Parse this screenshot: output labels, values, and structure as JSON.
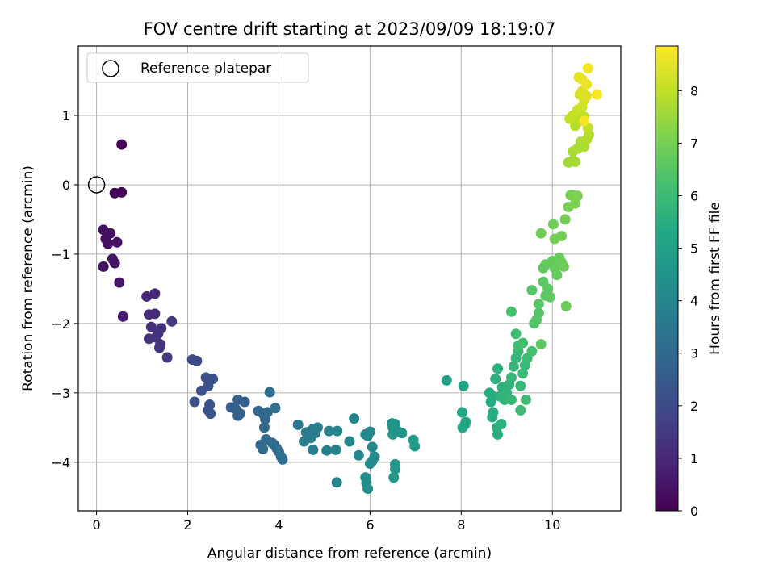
{
  "chart_data": {
    "type": "scatter",
    "title": "FOV centre drift starting at 2023/09/09 18:19:07",
    "xlabel": "Angular distance from reference (arcmin)",
    "ylabel": "Rotation from reference (arcmin)",
    "xlim": [
      -0.4,
      11.5
    ],
    "ylim": [
      -4.7,
      2.0
    ],
    "xticks": [
      "0",
      "2",
      "4",
      "6",
      "8",
      "10"
    ],
    "yticks": [
      "−4",
      "−3",
      "−2",
      "−1",
      "0",
      "1"
    ],
    "grid": true,
    "legend": {
      "placement": "top-left",
      "entries": [
        "Reference platepar"
      ]
    },
    "reference_point": {
      "x": 0,
      "y": 0
    },
    "colorbar": {
      "label": "Hours from first FF file",
      "range": [
        0,
        8.85
      ],
      "ticks": [
        "0",
        "1",
        "2",
        "3",
        "4",
        "5",
        "6",
        "7",
        "8"
      ],
      "colormap": "viridis"
    },
    "points": [
      {
        "x": 0.55,
        "y": 0.58,
        "c": 0.0
      },
      {
        "x": 0.4,
        "y": -0.12,
        "c": 0.05
      },
      {
        "x": 0.55,
        "y": -0.11,
        "c": 0.05
      },
      {
        "x": 0.15,
        "y": -0.65,
        "c": 0.3
      },
      {
        "x": 0.3,
        "y": -0.7,
        "c": 0.3
      },
      {
        "x": 0.2,
        "y": -0.78,
        "c": 0.35
      },
      {
        "x": 0.25,
        "y": -0.85,
        "c": 0.35
      },
      {
        "x": 0.45,
        "y": -0.83,
        "c": 0.4
      },
      {
        "x": 0.35,
        "y": -1.07,
        "c": 0.45
      },
      {
        "x": 0.15,
        "y": -1.18,
        "c": 0.45
      },
      {
        "x": 0.4,
        "y": -1.13,
        "c": 0.5
      },
      {
        "x": 0.5,
        "y": -1.41,
        "c": 0.55
      },
      {
        "x": 0.58,
        "y": -1.9,
        "c": 0.6
      },
      {
        "x": 1.1,
        "y": -1.61,
        "c": 1.0
      },
      {
        "x": 1.28,
        "y": -1.57,
        "c": 1.0
      },
      {
        "x": 1.15,
        "y": -1.87,
        "c": 1.1
      },
      {
        "x": 1.28,
        "y": -1.86,
        "c": 1.1
      },
      {
        "x": 1.2,
        "y": -2.05,
        "c": 1.2
      },
      {
        "x": 1.35,
        "y": -2.15,
        "c": 1.2
      },
      {
        "x": 1.42,
        "y": -2.07,
        "c": 1.25
      },
      {
        "x": 1.15,
        "y": -2.22,
        "c": 1.3
      },
      {
        "x": 1.3,
        "y": -2.2,
        "c": 1.3
      },
      {
        "x": 1.4,
        "y": -2.3,
        "c": 1.35
      },
      {
        "x": 1.38,
        "y": -2.35,
        "c": 1.35
      },
      {
        "x": 1.65,
        "y": -1.97,
        "c": 1.4
      },
      {
        "x": 1.55,
        "y": -2.49,
        "c": 1.5
      },
      {
        "x": 2.1,
        "y": -2.52,
        "c": 2.0
      },
      {
        "x": 2.2,
        "y": -2.54,
        "c": 2.0
      },
      {
        "x": 2.3,
        "y": -2.97,
        "c": 2.1
      },
      {
        "x": 2.4,
        "y": -2.78,
        "c": 2.15
      },
      {
        "x": 2.55,
        "y": -2.8,
        "c": 2.2
      },
      {
        "x": 2.45,
        "y": -2.9,
        "c": 2.2
      },
      {
        "x": 2.15,
        "y": -3.13,
        "c": 2.25
      },
      {
        "x": 2.48,
        "y": -3.17,
        "c": 2.3
      },
      {
        "x": 2.45,
        "y": -3.25,
        "c": 2.3
      },
      {
        "x": 2.5,
        "y": -3.3,
        "c": 2.35
      },
      {
        "x": 2.95,
        "y": -3.21,
        "c": 2.6
      },
      {
        "x": 3.1,
        "y": -3.1,
        "c": 2.65
      },
      {
        "x": 3.25,
        "y": -3.13,
        "c": 2.7
      },
      {
        "x": 3.05,
        "y": -3.23,
        "c": 2.7
      },
      {
        "x": 3.15,
        "y": -3.3,
        "c": 2.75
      },
      {
        "x": 3.1,
        "y": -3.33,
        "c": 2.75
      },
      {
        "x": 3.55,
        "y": -3.26,
        "c": 2.85
      },
      {
        "x": 3.65,
        "y": -3.3,
        "c": 2.9
      },
      {
        "x": 3.75,
        "y": -3.28,
        "c": 2.9
      },
      {
        "x": 3.7,
        "y": -3.38,
        "c": 2.95
      },
      {
        "x": 3.68,
        "y": -3.5,
        "c": 3.0
      },
      {
        "x": 3.6,
        "y": -3.75,
        "c": 3.05
      },
      {
        "x": 3.65,
        "y": -3.81,
        "c": 3.05
      },
      {
        "x": 3.72,
        "y": -3.67,
        "c": 3.05
      },
      {
        "x": 3.85,
        "y": -3.72,
        "c": 3.1
      },
      {
        "x": 3.9,
        "y": -3.75,
        "c": 3.1
      },
      {
        "x": 3.95,
        "y": -3.8,
        "c": 3.15
      },
      {
        "x": 4.0,
        "y": -3.85,
        "c": 3.15
      },
      {
        "x": 4.05,
        "y": -3.92,
        "c": 3.2
      },
      {
        "x": 4.08,
        "y": -3.96,
        "c": 3.2
      },
      {
        "x": 3.8,
        "y": -2.99,
        "c": 3.25
      },
      {
        "x": 3.92,
        "y": -3.22,
        "c": 3.25
      },
      {
        "x": 4.42,
        "y": -3.46,
        "c": 3.5
      },
      {
        "x": 4.6,
        "y": -3.57,
        "c": 3.55
      },
      {
        "x": 4.65,
        "y": -3.62,
        "c": 3.6
      },
      {
        "x": 4.7,
        "y": -3.55,
        "c": 3.6
      },
      {
        "x": 4.75,
        "y": -3.52,
        "c": 3.65
      },
      {
        "x": 4.8,
        "y": -3.58,
        "c": 3.65
      },
      {
        "x": 4.85,
        "y": -3.5,
        "c": 3.7
      },
      {
        "x": 4.7,
        "y": -3.65,
        "c": 3.7
      },
      {
        "x": 4.55,
        "y": -3.7,
        "c": 3.75
      },
      {
        "x": 4.75,
        "y": -3.82,
        "c": 3.75
      },
      {
        "x": 5.05,
        "y": -3.83,
        "c": 3.8
      },
      {
        "x": 5.1,
        "y": -3.55,
        "c": 3.85
      },
      {
        "x": 5.28,
        "y": -3.55,
        "c": 3.9
      },
      {
        "x": 5.25,
        "y": -3.82,
        "c": 3.9
      },
      {
        "x": 5.27,
        "y": -4.29,
        "c": 3.95
      },
      {
        "x": 5.55,
        "y": -3.7,
        "c": 4.0
      },
      {
        "x": 5.65,
        "y": -3.37,
        "c": 4.0
      },
      {
        "x": 5.75,
        "y": -3.9,
        "c": 4.05
      },
      {
        "x": 5.9,
        "y": -3.6,
        "c": 4.1
      },
      {
        "x": 6.0,
        "y": -3.56,
        "c": 4.1
      },
      {
        "x": 5.95,
        "y": -3.62,
        "c": 4.1
      },
      {
        "x": 6.05,
        "y": -3.78,
        "c": 4.15
      },
      {
        "x": 6.1,
        "y": -3.92,
        "c": 4.15
      },
      {
        "x": 6.05,
        "y": -3.98,
        "c": 4.2
      },
      {
        "x": 6.0,
        "y": -4.02,
        "c": 4.2
      },
      {
        "x": 5.9,
        "y": -4.22,
        "c": 4.25
      },
      {
        "x": 5.92,
        "y": -4.3,
        "c": 4.25
      },
      {
        "x": 5.95,
        "y": -4.38,
        "c": 4.3
      },
      {
        "x": 6.48,
        "y": -3.44,
        "c": 4.5
      },
      {
        "x": 6.55,
        "y": -3.45,
        "c": 4.55
      },
      {
        "x": 6.5,
        "y": -3.5,
        "c": 4.55
      },
      {
        "x": 6.6,
        "y": -3.55,
        "c": 4.6
      },
      {
        "x": 6.7,
        "y": -3.58,
        "c": 4.6
      },
      {
        "x": 6.5,
        "y": -3.6,
        "c": 4.65
      },
      {
        "x": 6.55,
        "y": -4.03,
        "c": 4.7
      },
      {
        "x": 6.55,
        "y": -4.1,
        "c": 4.7
      },
      {
        "x": 6.52,
        "y": -4.22,
        "c": 4.75
      },
      {
        "x": 6.95,
        "y": -3.68,
        "c": 4.8
      },
      {
        "x": 6.98,
        "y": -3.77,
        "c": 4.85
      },
      {
        "x": 7.68,
        "y": -2.82,
        "c": 5.0
      },
      {
        "x": 8.05,
        "y": -2.9,
        "c": 5.1
      },
      {
        "x": 8.02,
        "y": -3.28,
        "c": 5.15
      },
      {
        "x": 8.1,
        "y": -3.42,
        "c": 5.2
      },
      {
        "x": 8.08,
        "y": -3.46,
        "c": 5.2
      },
      {
        "x": 8.03,
        "y": -3.5,
        "c": 5.25
      },
      {
        "x": 8.62,
        "y": -3.0,
        "c": 5.4
      },
      {
        "x": 8.7,
        "y": -3.05,
        "c": 5.45
      },
      {
        "x": 8.65,
        "y": -3.13,
        "c": 5.45
      },
      {
        "x": 8.7,
        "y": -3.28,
        "c": 5.5
      },
      {
        "x": 8.68,
        "y": -3.35,
        "c": 5.5
      },
      {
        "x": 8.78,
        "y": -3.5,
        "c": 5.55
      },
      {
        "x": 8.8,
        "y": -3.6,
        "c": 5.55
      },
      {
        "x": 8.88,
        "y": -3.45,
        "c": 5.6
      },
      {
        "x": 8.75,
        "y": -2.8,
        "c": 5.6
      },
      {
        "x": 8.8,
        "y": -2.65,
        "c": 5.65
      },
      {
        "x": 8.9,
        "y": -2.92,
        "c": 5.65
      },
      {
        "x": 8.85,
        "y": -3.05,
        "c": 5.7
      },
      {
        "x": 8.95,
        "y": -3.1,
        "c": 5.7
      },
      {
        "x": 9.0,
        "y": -3.0,
        "c": 5.75
      },
      {
        "x": 9.05,
        "y": -2.88,
        "c": 5.75
      },
      {
        "x": 9.1,
        "y": -2.78,
        "c": 5.8
      },
      {
        "x": 9.15,
        "y": -2.62,
        "c": 5.8
      },
      {
        "x": 9.2,
        "y": -2.5,
        "c": 5.85
      },
      {
        "x": 9.25,
        "y": -2.4,
        "c": 5.85
      },
      {
        "x": 9.1,
        "y": -3.1,
        "c": 5.9
      },
      {
        "x": 9.3,
        "y": -2.9,
        "c": 5.9
      },
      {
        "x": 9.35,
        "y": -2.72,
        "c": 5.95
      },
      {
        "x": 9.4,
        "y": -2.6,
        "c": 5.95
      },
      {
        "x": 9.45,
        "y": -2.5,
        "c": 6.0
      },
      {
        "x": 9.3,
        "y": -3.25,
        "c": 6.0
      },
      {
        "x": 9.42,
        "y": -3.1,
        "c": 6.05
      },
      {
        "x": 9.2,
        "y": -2.15,
        "c": 6.1
      },
      {
        "x": 9.25,
        "y": -2.32,
        "c": 6.1
      },
      {
        "x": 9.35,
        "y": -2.28,
        "c": 6.15
      },
      {
        "x": 9.55,
        "y": -2.4,
        "c": 6.2
      },
      {
        "x": 9.1,
        "y": -1.83,
        "c": 6.25
      },
      {
        "x": 9.6,
        "y": -2.0,
        "c": 6.4
      },
      {
        "x": 9.65,
        "y": -1.95,
        "c": 6.45
      },
      {
        "x": 9.7,
        "y": -1.85,
        "c": 6.45
      },
      {
        "x": 9.55,
        "y": -1.52,
        "c": 6.5
      },
      {
        "x": 9.7,
        "y": -1.72,
        "c": 6.5
      },
      {
        "x": 9.8,
        "y": -1.4,
        "c": 6.55
      },
      {
        "x": 9.85,
        "y": -1.6,
        "c": 6.55
      },
      {
        "x": 9.75,
        "y": -2.3,
        "c": 6.6
      },
      {
        "x": 9.9,
        "y": -1.5,
        "c": 6.6
      },
      {
        "x": 9.95,
        "y": -1.62,
        "c": 6.65
      },
      {
        "x": 9.8,
        "y": -1.2,
        "c": 6.65
      },
      {
        "x": 9.85,
        "y": -1.15,
        "c": 6.7
      },
      {
        "x": 10.0,
        "y": -1.1,
        "c": 6.7
      },
      {
        "x": 10.05,
        "y": -1.2,
        "c": 6.75
      },
      {
        "x": 10.1,
        "y": -1.3,
        "c": 6.75
      },
      {
        "x": 10.15,
        "y": -1.05,
        "c": 6.8
      },
      {
        "x": 10.2,
        "y": -1.12,
        "c": 6.8
      },
      {
        "x": 10.25,
        "y": -1.18,
        "c": 6.85
      },
      {
        "x": 10.3,
        "y": -1.75,
        "c": 6.85
      },
      {
        "x": 9.75,
        "y": -0.7,
        "c": 6.9
      },
      {
        "x": 10.02,
        "y": -0.57,
        "c": 6.9
      },
      {
        "x": 10.05,
        "y": -0.78,
        "c": 6.95
      },
      {
        "x": 10.2,
        "y": -0.74,
        "c": 6.95
      },
      {
        "x": 10.28,
        "y": -0.5,
        "c": 7.0
      },
      {
        "x": 10.35,
        "y": -0.32,
        "c": 7.0
      },
      {
        "x": 10.4,
        "y": -0.15,
        "c": 7.05
      },
      {
        "x": 10.45,
        "y": -0.15,
        "c": 7.05
      },
      {
        "x": 10.5,
        "y": -0.27,
        "c": 7.1
      },
      {
        "x": 10.55,
        "y": -0.16,
        "c": 7.1
      },
      {
        "x": 10.35,
        "y": 0.32,
        "c": 7.6
      },
      {
        "x": 10.45,
        "y": 0.35,
        "c": 7.65
      },
      {
        "x": 10.5,
        "y": 0.33,
        "c": 7.65
      },
      {
        "x": 10.45,
        "y": 0.48,
        "c": 7.7
      },
      {
        "x": 10.55,
        "y": 0.52,
        "c": 7.7
      },
      {
        "x": 10.62,
        "y": 0.62,
        "c": 7.75
      },
      {
        "x": 10.7,
        "y": 0.55,
        "c": 7.75
      },
      {
        "x": 10.75,
        "y": 0.65,
        "c": 7.8
      },
      {
        "x": 10.8,
        "y": 0.72,
        "c": 7.8
      },
      {
        "x": 10.5,
        "y": 0.85,
        "c": 7.85
      },
      {
        "x": 10.55,
        "y": 0.95,
        "c": 7.85
      },
      {
        "x": 10.6,
        "y": 0.92,
        "c": 7.9
      },
      {
        "x": 10.7,
        "y": 0.98,
        "c": 7.95
      },
      {
        "x": 10.78,
        "y": 0.82,
        "c": 8.0
      },
      {
        "x": 10.38,
        "y": 0.95,
        "c": 8.05
      },
      {
        "x": 10.45,
        "y": 1.0,
        "c": 8.1
      },
      {
        "x": 10.55,
        "y": 1.08,
        "c": 8.15
      },
      {
        "x": 10.65,
        "y": 1.12,
        "c": 8.2
      },
      {
        "x": 10.7,
        "y": 1.22,
        "c": 8.25
      },
      {
        "x": 10.6,
        "y": 1.3,
        "c": 8.3
      },
      {
        "x": 10.65,
        "y": 1.35,
        "c": 8.35
      },
      {
        "x": 10.75,
        "y": 1.28,
        "c": 8.4
      },
      {
        "x": 10.58,
        "y": 1.55,
        "c": 8.5
      },
      {
        "x": 10.65,
        "y": 1.52,
        "c": 8.55
      },
      {
        "x": 10.75,
        "y": 1.45,
        "c": 8.6
      },
      {
        "x": 10.78,
        "y": 1.68,
        "c": 8.7
      },
      {
        "x": 10.98,
        "y": 1.3,
        "c": 8.8
      },
      {
        "x": 10.7,
        "y": 0.92,
        "c": 8.75
      }
    ]
  }
}
